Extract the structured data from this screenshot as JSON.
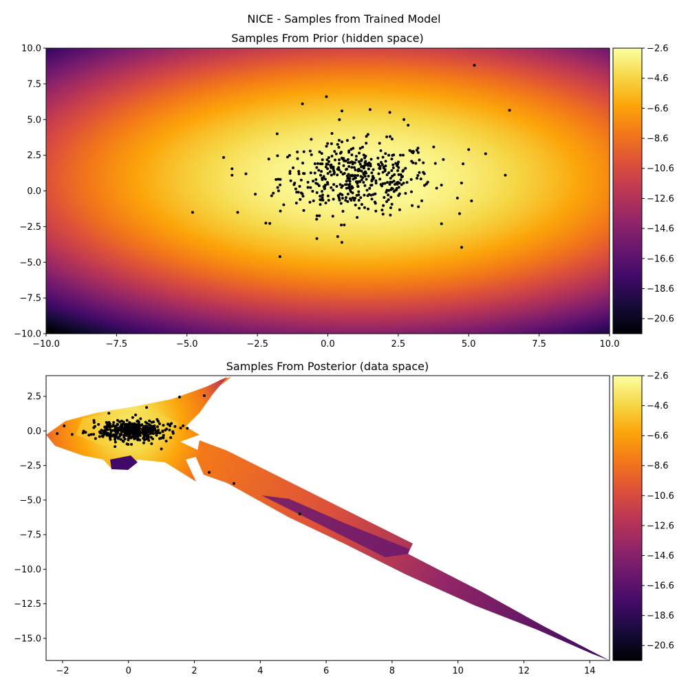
{
  "suptitle": "NICE - Samples from Trained Model",
  "colormap": "inferno",
  "chart_data": [
    {
      "type": "scatter",
      "title": "Samples From Prior (hidden space)",
      "xlim": [
        -10,
        10
      ],
      "ylim": [
        -10,
        10
      ],
      "xticks": [
        "−10.0",
        "−7.5",
        "−5.0",
        "−2.5",
        "0.0",
        "2.5",
        "5.0",
        "7.5",
        "10.0"
      ],
      "yticks": [
        "−10.0",
        "−7.5",
        "−5.0",
        "−2.5",
        "0.0",
        "2.5",
        "5.0",
        "7.5",
        "10.0"
      ],
      "background": {
        "type": "log-density heatmap",
        "center": [
          1.1,
          0.9
        ],
        "spread": [
          3.2,
          2.5
        ],
        "colormap": "inferno"
      },
      "colorbar": {
        "ticks": [
          "−2.6",
          "−4.6",
          "−6.6",
          "−8.6",
          "−10.6",
          "−12.6",
          "−14.6",
          "−16.6",
          "−18.6",
          "−20.6"
        ],
        "range": [
          -21.6,
          -2.6
        ]
      },
      "points": {
        "x": [
          5.2,
          6.45,
          -0.9,
          2.7,
          2.85,
          0.5,
          1.5,
          2.2,
          -1.8,
          -4.8,
          -3.2,
          -2.2,
          4.75,
          -1.7,
          0.5,
          0.35,
          4.8,
          5.6,
          6.3,
          5.1,
          -3.4,
          -3.4,
          3.2,
          4.1,
          4.6,
          5.0,
          -0.05
        ],
        "y": [
          8.8,
          5.65,
          6.1,
          5.0,
          4.6,
          5.6,
          5.7,
          5.5,
          4.0,
          -1.5,
          -1.5,
          -2.25,
          -3.95,
          -4.6,
          -3.6,
          -3.2,
          1.9,
          2.6,
          1.1,
          -0.7,
          1.55,
          1.1,
          3.0,
          2.2,
          -0.5,
          2.9,
          6.6
        ],
        "cluster": {
          "center": [
            1.0,
            0.9
          ],
          "sd": [
            1.35,
            1.25
          ],
          "count": 450
        }
      }
    },
    {
      "type": "scatter",
      "title": "Samples From Posterior (data space)",
      "xlim": [
        -2.5,
        14.6
      ],
      "ylim": [
        -16.6,
        4.0
      ],
      "xticks": [
        "−2",
        "0",
        "2",
        "4",
        "6",
        "8",
        "10",
        "12",
        "14"
      ],
      "yticks": [
        "2.5",
        "0.0",
        "−2.5",
        "−5.0",
        "−7.5",
        "−10.0",
        "−12.5",
        "−15.0"
      ],
      "background": {
        "type": "transformed log-density region",
        "colormap": "inferno"
      },
      "colorbar": {
        "ticks": [
          "−2.6",
          "−4.6",
          "−6.6",
          "−8.6",
          "−10.6",
          "−12.6",
          "−14.6",
          "−16.6",
          "−18.6",
          "−20.6"
        ],
        "range": [
          -21.6,
          -2.6
        ]
      },
      "points": {
        "x": [
          1.55,
          2.3,
          2.45,
          3.2,
          5.2,
          -1.3,
          -1.2,
          0.55,
          1.0,
          1.2
        ],
        "y": [
          2.45,
          2.55,
          -3.0,
          -3.8,
          -6.0,
          -0.1,
          -0.3,
          1.7,
          -1.3,
          0.5
        ],
        "cluster": {
          "center": [
            0.1,
            0.05
          ],
          "sd": [
            0.45,
            0.35
          ],
          "count": 450
        }
      }
    }
  ]
}
